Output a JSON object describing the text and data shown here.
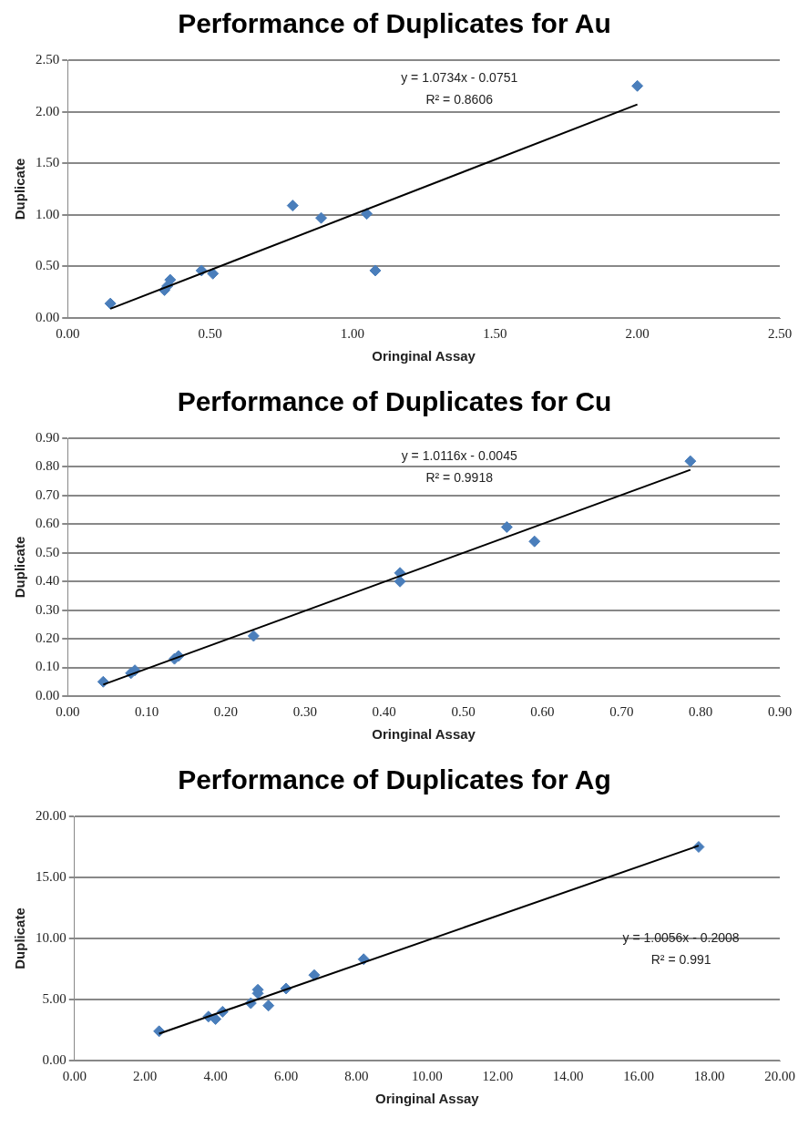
{
  "chart_data": [
    {
      "type": "scatter",
      "title": "Performance of Duplicates for Au",
      "xlabel": "Oringinal Assay",
      "ylabel": "Duplicate",
      "marker": "diamond",
      "grid": "y",
      "xlim": [
        0,
        2.5
      ],
      "xticks": [
        {
          "value": 0,
          "label": "0.00"
        },
        {
          "value": 0.5,
          "label": "0.50"
        },
        {
          "value": 1,
          "label": "1.00"
        },
        {
          "value": 1.5,
          "label": "1.50"
        },
        {
          "value": 2,
          "label": "2.00"
        },
        {
          "value": 2.5,
          "label": "2.50"
        }
      ],
      "ylim": [
        0,
        2.5
      ],
      "yticks": [
        {
          "value": 0,
          "label": "0.00"
        },
        {
          "value": 0.5,
          "label": "0.50"
        },
        {
          "value": 1,
          "label": "1.00"
        },
        {
          "value": 1.5,
          "label": "1.50"
        },
        {
          "value": 2,
          "label": "2.00"
        },
        {
          "value": 2.5,
          "label": "2.50"
        }
      ],
      "series": [
        {
          "color": "#4a7ebb",
          "x": [
            0.15,
            0.34,
            0.35,
            0.36,
            0.47,
            0.51,
            0.79,
            0.89,
            1.05,
            1.08,
            2.0
          ],
          "values": [
            0.14,
            0.27,
            0.31,
            0.37,
            0.46,
            0.43,
            1.09,
            0.97,
            1.01,
            0.46,
            2.25
          ]
        },
        {
          "type": "line",
          "color": "#000000",
          "marker": "none",
          "x": [
            0.15,
            2.0
          ],
          "values": [
            0.09,
            2.07
          ]
        }
      ],
      "annotations": [
        "y = 1.0734x - 0.0751",
        "R² = 0.8606"
      ]
    },
    {
      "type": "scatter",
      "title": "Performance of Duplicates for Cu",
      "xlabel": "Oringinal Assay",
      "ylabel": "Duplicate",
      "marker": "diamond",
      "grid": "y",
      "xlim": [
        0,
        0.9
      ],
      "xticks": [
        {
          "value": 0,
          "label": "0.00"
        },
        {
          "value": 0.1,
          "label": "0.10"
        },
        {
          "value": 0.2,
          "label": "0.20"
        },
        {
          "value": 0.3,
          "label": "0.30"
        },
        {
          "value": 0.4,
          "label": "0.40"
        },
        {
          "value": 0.5,
          "label": "0.50"
        },
        {
          "value": 0.6,
          "label": "0.60"
        },
        {
          "value": 0.7,
          "label": "0.70"
        },
        {
          "value": 0.8,
          "label": "0.80"
        },
        {
          "value": 0.9,
          "label": "0.90"
        }
      ],
      "ylim": [
        0,
        0.9
      ],
      "yticks": [
        {
          "value": 0,
          "label": "0.00"
        },
        {
          "value": 0.1,
          "label": "0.10"
        },
        {
          "value": 0.2,
          "label": "0.20"
        },
        {
          "value": 0.3,
          "label": "0.30"
        },
        {
          "value": 0.4,
          "label": "0.40"
        },
        {
          "value": 0.5,
          "label": "0.50"
        },
        {
          "value": 0.6,
          "label": "0.60"
        },
        {
          "value": 0.7,
          "label": "0.70"
        },
        {
          "value": 0.8,
          "label": "0.80"
        },
        {
          "value": 0.9,
          "label": "0.90"
        }
      ],
      "series": [
        {
          "color": "#4a7ebb",
          "x": [
            0.045,
            0.08,
            0.085,
            0.135,
            0.14,
            0.235,
            0.42,
            0.42,
            0.555,
            0.59,
            0.787
          ],
          "values": [
            0.05,
            0.08,
            0.09,
            0.13,
            0.14,
            0.21,
            0.43,
            0.4,
            0.59,
            0.54,
            0.82
          ]
        },
        {
          "type": "line",
          "color": "#000000",
          "marker": "none",
          "x": [
            0.045,
            0.787
          ],
          "values": [
            0.04,
            0.79
          ]
        }
      ],
      "annotations": [
        "y = 1.0116x - 0.0045",
        "R² = 0.9918"
      ]
    },
    {
      "type": "scatter",
      "title": "Performance of Duplicates for Ag",
      "xlabel": "Oringinal Assay",
      "ylabel": "Duplicate",
      "marker": "diamond",
      "grid": "y",
      "xlim": [
        0,
        20
      ],
      "xticks": [
        {
          "value": 0,
          "label": "0.00"
        },
        {
          "value": 2,
          "label": "2.00"
        },
        {
          "value": 4,
          "label": "4.00"
        },
        {
          "value": 6,
          "label": "6.00"
        },
        {
          "value": 8,
          "label": "8.00"
        },
        {
          "value": 10,
          "label": "10.00"
        },
        {
          "value": 12,
          "label": "12.00"
        },
        {
          "value": 14,
          "label": "14.00"
        },
        {
          "value": 16,
          "label": "16.00"
        },
        {
          "value": 18,
          "label": "18.00"
        },
        {
          "value": 20,
          "label": "20.00"
        }
      ],
      "ylim": [
        0,
        20
      ],
      "yticks": [
        {
          "value": 0,
          "label": "0.00"
        },
        {
          "value": 5,
          "label": "5.00"
        },
        {
          "value": 10,
          "label": "10.00"
        },
        {
          "value": 15,
          "label": "15.00"
        },
        {
          "value": 20,
          "label": "20.00"
        }
      ],
      "series": [
        {
          "color": "#4a7ebb",
          "x": [
            2.4,
            3.8,
            4.0,
            4.2,
            5.0,
            5.2,
            5.2,
            5.5,
            6.0,
            6.8,
            8.2,
            17.7
          ],
          "values": [
            2.4,
            3.6,
            3.4,
            4.0,
            4.7,
            5.5,
            5.8,
            4.5,
            5.9,
            7.0,
            8.3,
            17.5
          ]
        },
        {
          "type": "line",
          "color": "#000000",
          "marker": "none",
          "x": [
            2.4,
            17.7
          ],
          "values": [
            2.2,
            17.6
          ]
        }
      ],
      "annotations": [
        "y = 1.0056x - 0.2008",
        "R² = 0.991"
      ]
    }
  ]
}
